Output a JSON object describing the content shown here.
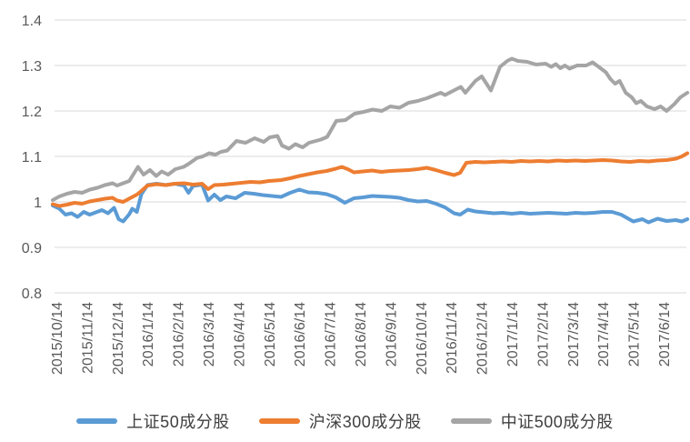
{
  "chart_data": {
    "type": "line",
    "title": "",
    "xlabel": "",
    "ylabel": "",
    "ylim": [
      0.8,
      1.4
    ],
    "y_ticks": [
      {
        "label": "1.4",
        "value": 1.4
      },
      {
        "label": "1.3",
        "value": 1.3
      },
      {
        "label": "1.2",
        "value": 1.2
      },
      {
        "label": "1.1",
        "value": 1.1
      },
      {
        "label": "1",
        "value": 1.0
      },
      {
        "label": "0.9",
        "value": 0.9
      },
      {
        "label": "0.8",
        "value": 0.8
      }
    ],
    "x_tick_labels": [
      "2015/10/14",
      "2015/11/14",
      "2015/12/14",
      "2016/1/14",
      "2016/2/14",
      "2016/3/14",
      "2016/4/14",
      "2016/5/14",
      "2016/6/14",
      "2016/7/14",
      "2016/8/14",
      "2016/9/14",
      "2016/10/14",
      "2016/11/14",
      "2016/12/14",
      "2017/1/14",
      "2017/2/14",
      "2017/3/14",
      "2017/4/14",
      "2017/5/14",
      "2017/6/14"
    ],
    "x_label_rotation": -90,
    "grid": true,
    "legend_position": "bottom",
    "axis_text_color": "#595959",
    "gridline_color": "#d9d9d9",
    "series": [
      {
        "name": "上证50成分股",
        "color": "#5b9bd5",
        "points": [
          [
            -0.12,
            0.992
          ],
          [
            0.1,
            0.985
          ],
          [
            0.3,
            0.972
          ],
          [
            0.5,
            0.975
          ],
          [
            0.7,
            0.967
          ],
          [
            0.9,
            0.978
          ],
          [
            1.1,
            0.972
          ],
          [
            1.3,
            0.977
          ],
          [
            1.5,
            0.982
          ],
          [
            1.7,
            0.975
          ],
          [
            1.9,
            0.987
          ],
          [
            2.05,
            0.962
          ],
          [
            2.2,
            0.957
          ],
          [
            2.4,
            0.973
          ],
          [
            2.5,
            0.985
          ],
          [
            2.65,
            0.978
          ],
          [
            2.8,
            1.017
          ],
          [
            3.0,
            1.037
          ],
          [
            3.3,
            1.04
          ],
          [
            3.6,
            1.037
          ],
          [
            3.9,
            1.04
          ],
          [
            4.2,
            1.036
          ],
          [
            4.35,
            1.02
          ],
          [
            4.5,
            1.035
          ],
          [
            4.8,
            1.038
          ],
          [
            5.0,
            1.003
          ],
          [
            5.2,
            1.016
          ],
          [
            5.4,
            1.004
          ],
          [
            5.6,
            1.012
          ],
          [
            5.9,
            1.008
          ],
          [
            6.2,
            1.02
          ],
          [
            6.5,
            1.018
          ],
          [
            6.8,
            1.015
          ],
          [
            7.1,
            1.013
          ],
          [
            7.4,
            1.011
          ],
          [
            7.7,
            1.02
          ],
          [
            8.0,
            1.027
          ],
          [
            8.3,
            1.021
          ],
          [
            8.6,
            1.02
          ],
          [
            8.9,
            1.017
          ],
          [
            9.2,
            1.01
          ],
          [
            9.5,
            0.998
          ],
          [
            9.8,
            1.008
          ],
          [
            10.1,
            1.01
          ],
          [
            10.4,
            1.013
          ],
          [
            10.7,
            1.012
          ],
          [
            11.0,
            1.011
          ],
          [
            11.3,
            1.009
          ],
          [
            11.6,
            1.004
          ],
          [
            11.9,
            1.001
          ],
          [
            12.2,
            1.002
          ],
          [
            12.5,
            0.996
          ],
          [
            12.8,
            0.988
          ],
          [
            13.1,
            0.975
          ],
          [
            13.3,
            0.972
          ],
          [
            13.55,
            0.983
          ],
          [
            13.8,
            0.979
          ],
          [
            14.1,
            0.977
          ],
          [
            14.4,
            0.975
          ],
          [
            14.7,
            0.976
          ],
          [
            15.0,
            0.974
          ],
          [
            15.3,
            0.976
          ],
          [
            15.6,
            0.974
          ],
          [
            15.9,
            0.975
          ],
          [
            16.2,
            0.976
          ],
          [
            16.5,
            0.975
          ],
          [
            16.8,
            0.974
          ],
          [
            17.1,
            0.976
          ],
          [
            17.4,
            0.975
          ],
          [
            17.7,
            0.976
          ],
          [
            18.0,
            0.978
          ],
          [
            18.3,
            0.978
          ],
          [
            18.6,
            0.972
          ],
          [
            19.0,
            0.957
          ],
          [
            19.3,
            0.962
          ],
          [
            19.5,
            0.955
          ],
          [
            19.8,
            0.963
          ],
          [
            20.1,
            0.958
          ],
          [
            20.4,
            0.96
          ],
          [
            20.6,
            0.957
          ],
          [
            20.78,
            0.962
          ]
        ]
      },
      {
        "name": "沪深300成分股",
        "color": "#ed7d31",
        "points": [
          [
            -0.12,
            0.995
          ],
          [
            0.1,
            0.991
          ],
          [
            0.35,
            0.994
          ],
          [
            0.6,
            0.998
          ],
          [
            0.85,
            0.996
          ],
          [
            1.1,
            1.001
          ],
          [
            1.35,
            1.004
          ],
          [
            1.6,
            1.007
          ],
          [
            1.85,
            1.009
          ],
          [
            2.0,
            1.003
          ],
          [
            2.2,
            1.0
          ],
          [
            2.45,
            1.009
          ],
          [
            2.65,
            1.016
          ],
          [
            2.8,
            1.024
          ],
          [
            3.0,
            1.036
          ],
          [
            3.3,
            1.039
          ],
          [
            3.6,
            1.037
          ],
          [
            3.9,
            1.04
          ],
          [
            4.2,
            1.041
          ],
          [
            4.5,
            1.038
          ],
          [
            4.8,
            1.04
          ],
          [
            5.0,
            1.028
          ],
          [
            5.2,
            1.037
          ],
          [
            5.5,
            1.038
          ],
          [
            5.8,
            1.04
          ],
          [
            6.1,
            1.042
          ],
          [
            6.4,
            1.044
          ],
          [
            6.7,
            1.043
          ],
          [
            7.0,
            1.046
          ],
          [
            7.4,
            1.048
          ],
          [
            7.7,
            1.052
          ],
          [
            8.0,
            1.057
          ],
          [
            8.3,
            1.061
          ],
          [
            8.6,
            1.065
          ],
          [
            8.9,
            1.068
          ],
          [
            9.2,
            1.073
          ],
          [
            9.4,
            1.077
          ],
          [
            9.6,
            1.072
          ],
          [
            9.8,
            1.065
          ],
          [
            10.1,
            1.067
          ],
          [
            10.4,
            1.069
          ],
          [
            10.7,
            1.066
          ],
          [
            11.0,
            1.068
          ],
          [
            11.3,
            1.069
          ],
          [
            11.6,
            1.07
          ],
          [
            11.9,
            1.072
          ],
          [
            12.2,
            1.075
          ],
          [
            12.5,
            1.07
          ],
          [
            12.8,
            1.064
          ],
          [
            13.1,
            1.059
          ],
          [
            13.3,
            1.064
          ],
          [
            13.5,
            1.086
          ],
          [
            13.8,
            1.088
          ],
          [
            14.1,
            1.087
          ],
          [
            14.4,
            1.088
          ],
          [
            14.7,
            1.089
          ],
          [
            15.0,
            1.088
          ],
          [
            15.3,
            1.09
          ],
          [
            15.6,
            1.089
          ],
          [
            15.9,
            1.09
          ],
          [
            16.2,
            1.089
          ],
          [
            16.5,
            1.091
          ],
          [
            16.8,
            1.09
          ],
          [
            17.1,
            1.091
          ],
          [
            17.4,
            1.09
          ],
          [
            17.7,
            1.091
          ],
          [
            18.0,
            1.092
          ],
          [
            18.3,
            1.091
          ],
          [
            18.6,
            1.089
          ],
          [
            18.9,
            1.088
          ],
          [
            19.2,
            1.09
          ],
          [
            19.5,
            1.089
          ],
          [
            19.8,
            1.091
          ],
          [
            20.1,
            1.092
          ],
          [
            20.4,
            1.095
          ],
          [
            20.6,
            1.1
          ],
          [
            20.78,
            1.107
          ]
        ]
      },
      {
        "name": "中证500成分股",
        "color": "#a5a5a5",
        "points": [
          [
            -0.12,
            1.004
          ],
          [
            0.1,
            1.012
          ],
          [
            0.35,
            1.018
          ],
          [
            0.6,
            1.022
          ],
          [
            0.85,
            1.02
          ],
          [
            1.1,
            1.027
          ],
          [
            1.35,
            1.031
          ],
          [
            1.6,
            1.037
          ],
          [
            1.85,
            1.041
          ],
          [
            2.0,
            1.036
          ],
          [
            2.2,
            1.041
          ],
          [
            2.4,
            1.046
          ],
          [
            2.69,
            1.077
          ],
          [
            2.87,
            1.06
          ],
          [
            3.08,
            1.07
          ],
          [
            3.29,
            1.057
          ],
          [
            3.47,
            1.067
          ],
          [
            3.68,
            1.06
          ],
          [
            3.92,
            1.072
          ],
          [
            4.19,
            1.077
          ],
          [
            4.34,
            1.083
          ],
          [
            4.64,
            1.097
          ],
          [
            4.82,
            1.1
          ],
          [
            5.03,
            1.107
          ],
          [
            5.24,
            1.104
          ],
          [
            5.42,
            1.11
          ],
          [
            5.63,
            1.113
          ],
          [
            5.93,
            1.134
          ],
          [
            6.23,
            1.13
          ],
          [
            6.53,
            1.14
          ],
          [
            6.83,
            1.132
          ],
          [
            7.03,
            1.142
          ],
          [
            7.28,
            1.145
          ],
          [
            7.43,
            1.124
          ],
          [
            7.66,
            1.117
          ],
          [
            7.87,
            1.127
          ],
          [
            8.11,
            1.12
          ],
          [
            8.32,
            1.13
          ],
          [
            8.71,
            1.137
          ],
          [
            8.92,
            1.143
          ],
          [
            9.22,
            1.178
          ],
          [
            9.52,
            1.18
          ],
          [
            9.82,
            1.194
          ],
          [
            10.12,
            1.198
          ],
          [
            10.42,
            1.203
          ],
          [
            10.72,
            1.2
          ],
          [
            11.0,
            1.21
          ],
          [
            11.3,
            1.207
          ],
          [
            11.6,
            1.218
          ],
          [
            11.9,
            1.222
          ],
          [
            12.2,
            1.228
          ],
          [
            12.66,
            1.24
          ],
          [
            12.8,
            1.235
          ],
          [
            13.32,
            1.253
          ],
          [
            13.47,
            1.24
          ],
          [
            13.8,
            1.266
          ],
          [
            14.01,
            1.276
          ],
          [
            14.31,
            1.245
          ],
          [
            14.61,
            1.297
          ],
          [
            14.85,
            1.31
          ],
          [
            15.0,
            1.315
          ],
          [
            15.2,
            1.31
          ],
          [
            15.51,
            1.308
          ],
          [
            15.8,
            1.302
          ],
          [
            16.11,
            1.304
          ],
          [
            16.3,
            1.297
          ],
          [
            16.45,
            1.303
          ],
          [
            16.6,
            1.294
          ],
          [
            16.75,
            1.3
          ],
          [
            16.9,
            1.293
          ],
          [
            17.15,
            1.3
          ],
          [
            17.45,
            1.3
          ],
          [
            17.66,
            1.307
          ],
          [
            17.9,
            1.295
          ],
          [
            18.1,
            1.285
          ],
          [
            18.25,
            1.27
          ],
          [
            18.4,
            1.26
          ],
          [
            18.55,
            1.266
          ],
          [
            18.75,
            1.24
          ],
          [
            18.95,
            1.23
          ],
          [
            19.1,
            1.217
          ],
          [
            19.25,
            1.222
          ],
          [
            19.45,
            1.21
          ],
          [
            19.7,
            1.204
          ],
          [
            19.9,
            1.21
          ],
          [
            20.1,
            1.2
          ],
          [
            20.35,
            1.215
          ],
          [
            20.55,
            1.23
          ],
          [
            20.78,
            1.24
          ]
        ]
      }
    ]
  }
}
